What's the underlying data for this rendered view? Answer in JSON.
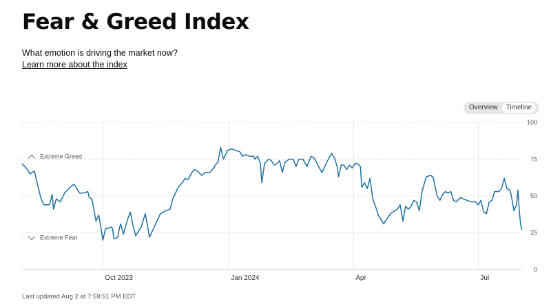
{
  "page": {
    "title": "Fear & Greed Index",
    "subtitle": "What emotion is driving the market now?",
    "learn_link": "Learn more about the index",
    "toggle": {
      "options": [
        "Overview",
        "Timeline"
      ],
      "selected": "Timeline"
    },
    "last_updated": "Last updated Aug 2 at 7:59:51 PM EDT"
  },
  "chart_data": {
    "type": "line",
    "ylim": [
      0,
      100
    ],
    "yticks": [
      0,
      25,
      50,
      75,
      100
    ],
    "xticks": [
      {
        "label": "Oct 2023",
        "x": "2023-10-01"
      },
      {
        "label": "Jan 2024",
        "x": "2024-01-01"
      },
      {
        "label": "Apr",
        "x": "2024-04-01"
      },
      {
        "label": "Jul",
        "x": "2024-07-01"
      }
    ],
    "xlim": [
      "2023-08-03",
      "2024-08-02"
    ],
    "zones": [
      {
        "label": "Extreme Greed",
        "level": 75,
        "icon": "chevron-up-icon"
      },
      {
        "label": "Extreme Fear",
        "level": 25,
        "icon": "chevron-down-icon"
      }
    ],
    "grid": true,
    "line_color": "#1e6f9f",
    "series": [
      {
        "values": [
          [
            "2023-08-03",
            72
          ],
          [
            "2023-08-06",
            69
          ],
          [
            "2023-08-09",
            65
          ],
          [
            "2023-08-12",
            67
          ],
          [
            "2023-08-15",
            55
          ],
          [
            "2023-08-17",
            48
          ],
          [
            "2023-08-19",
            44
          ],
          [
            "2023-08-23",
            44
          ],
          [
            "2023-08-25",
            51
          ],
          [
            "2023-08-26",
            41
          ],
          [
            "2023-08-28",
            48
          ],
          [
            "2023-08-31",
            46
          ],
          [
            "2023-09-03",
            52
          ],
          [
            "2023-09-07",
            56
          ],
          [
            "2023-09-10",
            58
          ],
          [
            "2023-09-14",
            52
          ],
          [
            "2023-09-17",
            52
          ],
          [
            "2023-09-20",
            53
          ],
          [
            "2023-09-21",
            49
          ],
          [
            "2023-09-23",
            48
          ],
          [
            "2023-09-25",
            38
          ],
          [
            "2023-09-26",
            33
          ],
          [
            "2023-09-28",
            37
          ],
          [
            "2023-10-01",
            20
          ],
          [
            "2023-10-03",
            28
          ],
          [
            "2023-10-05",
            28
          ],
          [
            "2023-10-07",
            29
          ],
          [
            "2023-10-08",
            28
          ],
          [
            "2023-10-09",
            21
          ],
          [
            "2023-10-10",
            21
          ],
          [
            "2023-10-12",
            22
          ],
          [
            "2023-10-13",
            28
          ],
          [
            "2023-10-14",
            31
          ],
          [
            "2023-10-16",
            24
          ],
          [
            "2023-10-19",
            34
          ],
          [
            "2023-10-21",
            39
          ],
          [
            "2023-10-23",
            30
          ],
          [
            "2023-10-25",
            23
          ],
          [
            "2023-10-29",
            29
          ],
          [
            "2023-11-01",
            38
          ],
          [
            "2023-11-04",
            22
          ],
          [
            "2023-11-08",
            30
          ],
          [
            "2023-11-12",
            38
          ],
          [
            "2023-11-16",
            40
          ],
          [
            "2023-11-19",
            41
          ],
          [
            "2023-11-21",
            48
          ],
          [
            "2023-11-25",
            56
          ],
          [
            "2023-11-28",
            59
          ],
          [
            "2023-11-30",
            62
          ],
          [
            "2023-12-02",
            61
          ],
          [
            "2023-12-05",
            66
          ],
          [
            "2023-12-07",
            68
          ],
          [
            "2023-12-09",
            67
          ],
          [
            "2023-12-12",
            64
          ],
          [
            "2023-12-15",
            66
          ],
          [
            "2023-12-18",
            66
          ],
          [
            "2023-12-21",
            69
          ],
          [
            "2023-12-22",
            71
          ],
          [
            "2023-12-24",
            73
          ],
          [
            "2023-12-26",
            83
          ],
          [
            "2023-12-28",
            75
          ],
          [
            "2023-12-31",
            81
          ],
          [
            "2024-01-03",
            82
          ],
          [
            "2024-01-06",
            81
          ],
          [
            "2024-01-09",
            80
          ],
          [
            "2024-01-11",
            77
          ],
          [
            "2024-01-13",
            78
          ],
          [
            "2024-01-16",
            77
          ],
          [
            "2024-01-19",
            77
          ],
          [
            "2024-01-20",
            75
          ],
          [
            "2024-01-22",
            77
          ],
          [
            "2024-01-24",
            72
          ],
          [
            "2024-01-25",
            59
          ],
          [
            "2024-01-27",
            72
          ],
          [
            "2024-01-30",
            75
          ],
          [
            "2024-02-01",
            74
          ],
          [
            "2024-02-03",
            71
          ],
          [
            "2024-02-05",
            72
          ],
          [
            "2024-02-07",
            74
          ],
          [
            "2024-02-09",
            66
          ],
          [
            "2024-02-11",
            73
          ],
          [
            "2024-02-14",
            75
          ],
          [
            "2024-02-17",
            75
          ],
          [
            "2024-02-19",
            70
          ],
          [
            "2024-02-21",
            75
          ],
          [
            "2024-02-24",
            75
          ],
          [
            "2024-02-27",
            70
          ],
          [
            "2024-03-01",
            77
          ],
          [
            "2024-03-03",
            76
          ],
          [
            "2024-03-05",
            73
          ],
          [
            "2024-03-07",
            69
          ],
          [
            "2024-03-09",
            66
          ],
          [
            "2024-03-11",
            70
          ],
          [
            "2024-03-13",
            74
          ],
          [
            "2024-03-16",
            79
          ],
          [
            "2024-03-18",
            76
          ],
          [
            "2024-03-20",
            70
          ],
          [
            "2024-03-21",
            63
          ],
          [
            "2024-03-23",
            71
          ],
          [
            "2024-03-25",
            71
          ],
          [
            "2024-03-27",
            68
          ],
          [
            "2024-03-29",
            71
          ],
          [
            "2024-03-31",
            69
          ],
          [
            "2024-04-02",
            72
          ],
          [
            "2024-04-04",
            72
          ],
          [
            "2024-04-06",
            70
          ],
          [
            "2024-04-07",
            56
          ],
          [
            "2024-04-09",
            59
          ],
          [
            "2024-04-11",
            55
          ],
          [
            "2024-04-13",
            62
          ],
          [
            "2024-04-15",
            48
          ],
          [
            "2024-04-17",
            43
          ],
          [
            "2024-04-19",
            37
          ],
          [
            "2024-04-21",
            34
          ],
          [
            "2024-04-23",
            31
          ],
          [
            "2024-04-25",
            34
          ],
          [
            "2024-04-28",
            38
          ],
          [
            "2024-05-01",
            40
          ],
          [
            "2024-05-03",
            41
          ],
          [
            "2024-05-05",
            44
          ],
          [
            "2024-05-07",
            33
          ],
          [
            "2024-05-09",
            43
          ],
          [
            "2024-05-11",
            41
          ],
          [
            "2024-05-13",
            43
          ],
          [
            "2024-05-15",
            47
          ],
          [
            "2024-05-17",
            46
          ],
          [
            "2024-05-19",
            40
          ],
          [
            "2024-05-21",
            53
          ],
          [
            "2024-05-24",
            63
          ],
          [
            "2024-05-27",
            64
          ],
          [
            "2024-05-29",
            63
          ],
          [
            "2024-06-01",
            50
          ],
          [
            "2024-06-03",
            47
          ],
          [
            "2024-06-05",
            51
          ],
          [
            "2024-06-07",
            53
          ],
          [
            "2024-06-09",
            52
          ],
          [
            "2024-06-11",
            53
          ],
          [
            "2024-06-13",
            47
          ],
          [
            "2024-06-15",
            46
          ],
          [
            "2024-06-18",
            49
          ],
          [
            "2024-06-20",
            48
          ],
          [
            "2024-06-23",
            47
          ],
          [
            "2024-06-26",
            46
          ],
          [
            "2024-06-29",
            46
          ],
          [
            "2024-07-01",
            44
          ],
          [
            "2024-07-03",
            47
          ],
          [
            "2024-07-05",
            39
          ],
          [
            "2024-07-07",
            38
          ],
          [
            "2024-07-09",
            46
          ],
          [
            "2024-07-11",
            47
          ],
          [
            "2024-07-13",
            53
          ],
          [
            "2024-07-16",
            53
          ],
          [
            "2024-07-18",
            55
          ],
          [
            "2024-07-20",
            62
          ],
          [
            "2024-07-22",
            55
          ],
          [
            "2024-07-24",
            54
          ],
          [
            "2024-07-25",
            51
          ],
          [
            "2024-07-27",
            40
          ],
          [
            "2024-07-29",
            44
          ],
          [
            "2024-07-30",
            54
          ],
          [
            "2024-07-31",
            40
          ],
          [
            "2024-08-01",
            30
          ],
          [
            "2024-08-02",
            27
          ]
        ]
      }
    ]
  }
}
